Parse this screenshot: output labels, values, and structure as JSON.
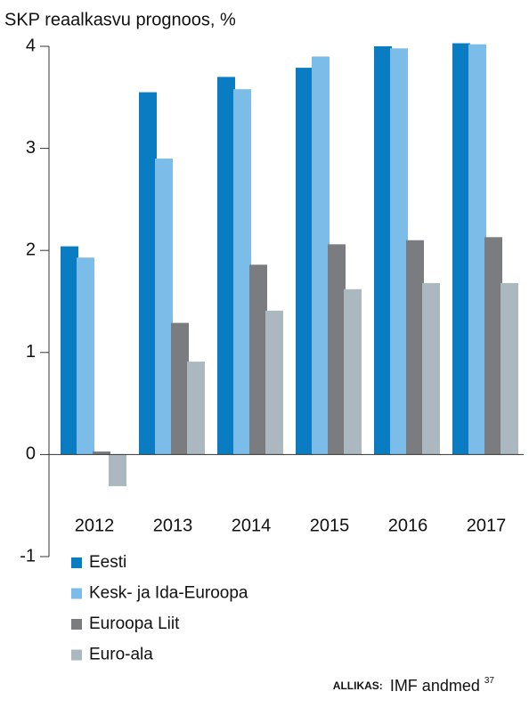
{
  "chart_data": {
    "type": "bar",
    "title": "SKP reaalkasvu prognoos, %",
    "categories": [
      "2012",
      "2013",
      "2014",
      "2015",
      "2016",
      "2017"
    ],
    "series": [
      {
        "name": "Eesti",
        "color": "#0a7dc2",
        "values": [
          2.04,
          3.55,
          3.7,
          3.79,
          4.0,
          4.03
        ]
      },
      {
        "name": "Kesk- ja Ida-Euroopa",
        "color": "#7bbde8",
        "values": [
          1.93,
          2.9,
          3.58,
          3.9,
          3.98,
          4.02
        ]
      },
      {
        "name": "Euroopa Liit",
        "color": "#7b7c7f",
        "values": [
          0.03,
          1.29,
          1.86,
          2.06,
          2.1,
          2.13
        ]
      },
      {
        "name": "Euro-ala",
        "color": "#acb8bf",
        "values": [
          -0.31,
          0.91,
          1.41,
          1.62,
          1.68,
          1.68
        ]
      }
    ],
    "ylim": [
      -1,
      4
    ],
    "yticks": [
      -1,
      0,
      1,
      2,
      3,
      4
    ],
    "source_label": "ALLIKAS:",
    "source": "IMF andmed",
    "footnote": "37"
  }
}
